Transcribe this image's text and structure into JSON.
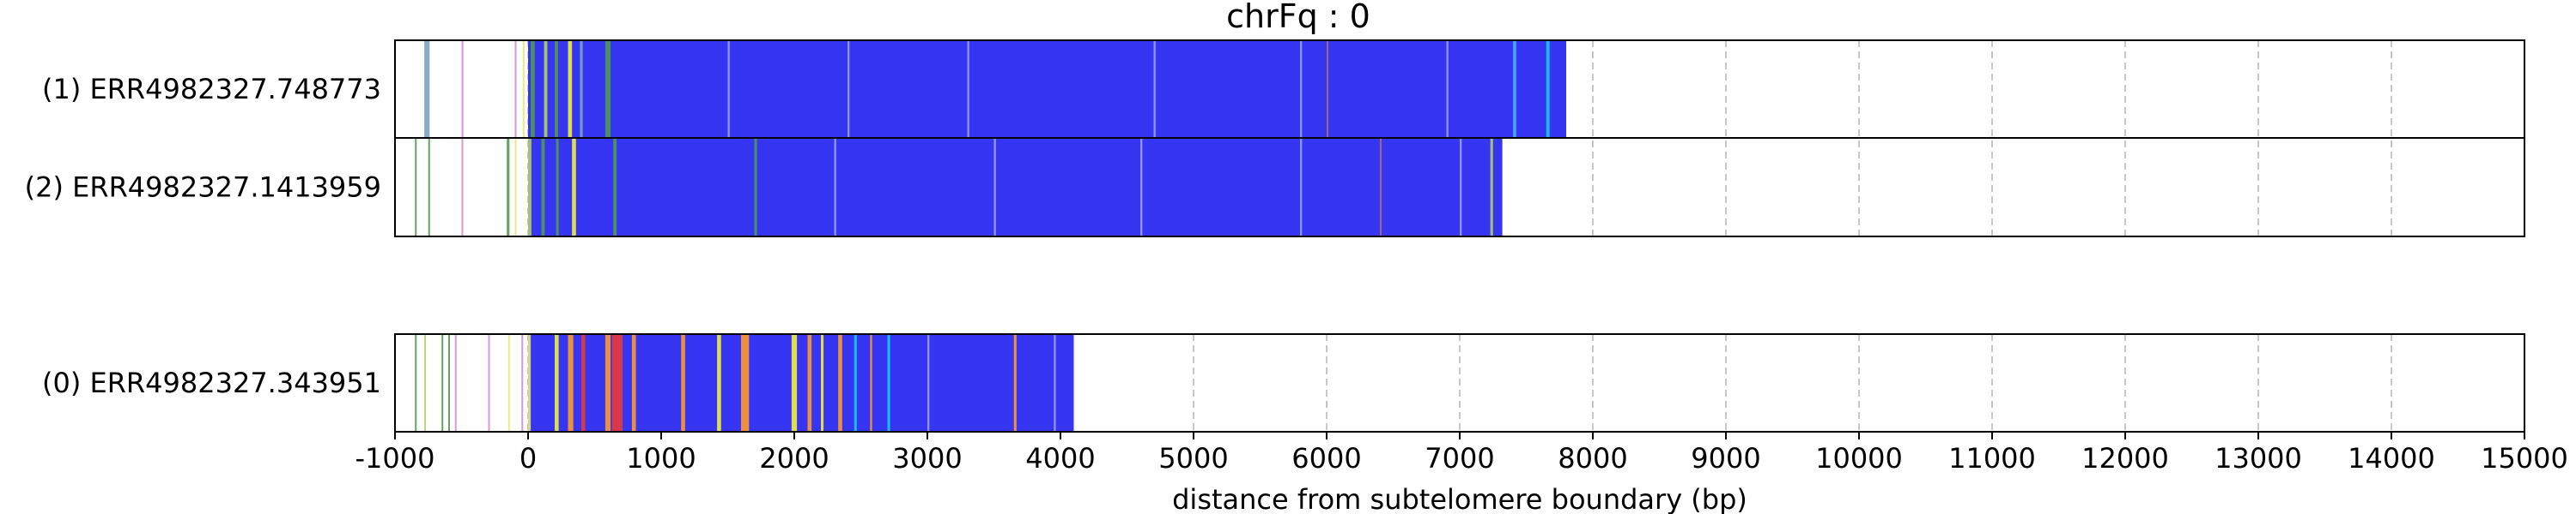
{
  "chart_data": {
    "type": "bar",
    "title": "chrFq : 0",
    "xlabel": "distance from subtelomere boundary (bp)",
    "xlim": [
      -1000,
      15000
    ],
    "xticks": [
      -1000,
      0,
      1000,
      2000,
      3000,
      4000,
      5000,
      6000,
      7000,
      8000,
      9000,
      10000,
      11000,
      12000,
      13000,
      14000,
      15000
    ],
    "grid": true,
    "reads": [
      {
        "label": "(1) ERR4982327.748773",
        "bg_color": "#3535f2",
        "span": [
          0,
          7800
        ],
        "marks": [
          {
            "x": -780,
            "w": 40,
            "color": "#7fa3bf"
          },
          {
            "x": -500,
            "w": 14,
            "color": "#d98ad9"
          },
          {
            "x": -100,
            "w": 10,
            "color": "#d98ad9"
          },
          {
            "x": -40,
            "w": 10,
            "color": "#e8e870"
          },
          {
            "x": 20,
            "w": 30,
            "color": "#4f9a4f"
          },
          {
            "x": 120,
            "w": 25,
            "color": "#b0d060"
          },
          {
            "x": 200,
            "w": 25,
            "color": "#4f9a4f"
          },
          {
            "x": 300,
            "w": 30,
            "color": "#f0f040"
          },
          {
            "x": 390,
            "w": 20,
            "color": "#7fa3bf"
          },
          {
            "x": 580,
            "w": 40,
            "color": "#4f9a4f"
          },
          {
            "x": 1500,
            "w": 15,
            "color": "#9aa0ff"
          },
          {
            "x": 2400,
            "w": 15,
            "color": "#9aa0ff"
          },
          {
            "x": 3300,
            "w": 15,
            "color": "#9aa0ff"
          },
          {
            "x": 4700,
            "w": 15,
            "color": "#9aa0ff"
          },
          {
            "x": 5800,
            "w": 15,
            "color": "#9aa0ff"
          },
          {
            "x": 6000,
            "w": 12,
            "color": "#b06868"
          },
          {
            "x": 6900,
            "w": 15,
            "color": "#9aa0ff"
          },
          {
            "x": 7400,
            "w": 25,
            "color": "#4aa8ff"
          },
          {
            "x": 7650,
            "w": 25,
            "color": "#19c8ff"
          }
        ]
      },
      {
        "label": "(2) ERR4982327.1413959",
        "bg_color": "#3535f2",
        "span": [
          0,
          7320
        ],
        "marks": [
          {
            "x": -850,
            "w": 10,
            "color": "#4f9a4f"
          },
          {
            "x": -750,
            "w": 12,
            "color": "#4f9a4f"
          },
          {
            "x": -500,
            "w": 10,
            "color": "#d98ad9"
          },
          {
            "x": -160,
            "w": 20,
            "color": "#4f9a4f"
          },
          {
            "x": -100,
            "w": 10,
            "color": "#e8e870"
          },
          {
            "x": 0,
            "w": 25,
            "color": "#b0d060"
          },
          {
            "x": 100,
            "w": 25,
            "color": "#4f9a4f"
          },
          {
            "x": 210,
            "w": 20,
            "color": "#4f9a4f"
          },
          {
            "x": 330,
            "w": 30,
            "color": "#f0f040"
          },
          {
            "x": 640,
            "w": 25,
            "color": "#4f9a4f"
          },
          {
            "x": 1700,
            "w": 20,
            "color": "#4f9a4f"
          },
          {
            "x": 2300,
            "w": 15,
            "color": "#9aa0ff"
          },
          {
            "x": 3500,
            "w": 15,
            "color": "#9aa0ff"
          },
          {
            "x": 4600,
            "w": 15,
            "color": "#9aa0ff"
          },
          {
            "x": 5800,
            "w": 15,
            "color": "#9aa0ff"
          },
          {
            "x": 6400,
            "w": 12,
            "color": "#b06868"
          },
          {
            "x": 7000,
            "w": 15,
            "color": "#9aa0ff"
          },
          {
            "x": 7230,
            "w": 20,
            "color": "#b0d060"
          }
        ]
      },
      {
        "label": "(0) ERR4982327.343951",
        "bg_color": "#3535f2",
        "span": [
          0,
          4100
        ],
        "marks": [
          {
            "x": -850,
            "w": 10,
            "color": "#4f9a4f"
          },
          {
            "x": -780,
            "w": 10,
            "color": "#b0d060"
          },
          {
            "x": -650,
            "w": 10,
            "color": "#4f9a4f"
          },
          {
            "x": -600,
            "w": 10,
            "color": "#4f9a4f"
          },
          {
            "x": -550,
            "w": 10,
            "color": "#d98ad9"
          },
          {
            "x": -300,
            "w": 10,
            "color": "#d98ad9"
          },
          {
            "x": -150,
            "w": 10,
            "color": "#e8e870"
          },
          {
            "x": -50,
            "w": 10,
            "color": "#d98ad9"
          },
          {
            "x": 0,
            "w": 20,
            "color": "#e8e870"
          },
          {
            "x": 200,
            "w": 30,
            "color": "#f0f040"
          },
          {
            "x": 300,
            "w": 40,
            "color": "#ff9a2e"
          },
          {
            "x": 400,
            "w": 30,
            "color": "#e83a3a"
          },
          {
            "x": 580,
            "w": 40,
            "color": "#ff9a2e"
          },
          {
            "x": 630,
            "w": 80,
            "color": "#e83a3a"
          },
          {
            "x": 780,
            "w": 30,
            "color": "#ff9a2e"
          },
          {
            "x": 1150,
            "w": 30,
            "color": "#ff9a2e"
          },
          {
            "x": 1420,
            "w": 30,
            "color": "#f0f040"
          },
          {
            "x": 1600,
            "w": 60,
            "color": "#ff9a2e"
          },
          {
            "x": 1980,
            "w": 40,
            "color": "#f0f040"
          },
          {
            "x": 2100,
            "w": 30,
            "color": "#ff9a2e"
          },
          {
            "x": 2200,
            "w": 20,
            "color": "#f0f040"
          },
          {
            "x": 2330,
            "w": 30,
            "color": "#ff9a2e"
          },
          {
            "x": 2450,
            "w": 20,
            "color": "#19c8ff"
          },
          {
            "x": 2570,
            "w": 15,
            "color": "#ff9a2e"
          },
          {
            "x": 2700,
            "w": 20,
            "color": "#19c8ff"
          },
          {
            "x": 3000,
            "w": 15,
            "color": "#9aa0ff"
          },
          {
            "x": 3650,
            "w": 20,
            "color": "#ff9a2e"
          },
          {
            "x": 3950,
            "w": 15,
            "color": "#9aa0ff"
          }
        ]
      }
    ]
  }
}
